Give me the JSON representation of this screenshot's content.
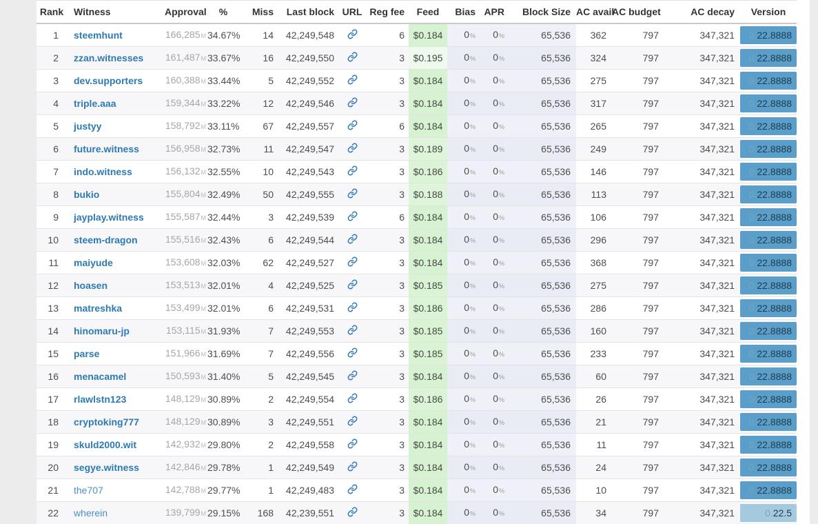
{
  "page": {
    "background": "#ececec"
  },
  "colors": {
    "link_blue": "#2d7ab0",
    "url_icon_blue": "#3579b8",
    "version_badge_blue": "#5b9ec9",
    "version_badge_old_blue": "#a5cadf",
    "feed_green": "#d7f2d1",
    "feed_pale_green": "#eefaec",
    "column_tint_lavender": "#f0f1f8",
    "row_stripe": "#f7f7fa"
  },
  "icons": {
    "url_column": "link-icon"
  },
  "table": {
    "percent_sign": "%",
    "columns": [
      {
        "key": "rank",
        "label": "Rank"
      },
      {
        "key": "witness",
        "label": "Witness"
      },
      {
        "key": "approval",
        "label": "Approval"
      },
      {
        "key": "pct",
        "label": "%"
      },
      {
        "key": "miss",
        "label": "Miss"
      },
      {
        "key": "last_block",
        "label": "Last block"
      },
      {
        "key": "url",
        "label": "URL"
      },
      {
        "key": "reg_fee",
        "label": "Reg fee"
      },
      {
        "key": "feed",
        "label": "Feed"
      },
      {
        "key": "bias",
        "label": "Bias"
      },
      {
        "key": "apr",
        "label": "APR"
      },
      {
        "key": "block_size",
        "label": "Block Size"
      },
      {
        "key": "ac_avail",
        "label": "AC avail"
      },
      {
        "key": "ac_budget",
        "label": "AC budget"
      },
      {
        "key": "ac_decay",
        "label": "AC decay"
      },
      {
        "key": "version",
        "label": "Version"
      }
    ],
    "rows": [
      {
        "rank": "1",
        "witness": "steemhunt",
        "bold": true,
        "approval": "166,285",
        "approval_suffix": "M",
        "pct": "34.67%",
        "miss": "14",
        "last_block": "42,249,548",
        "reg_fee": "6",
        "feed": "$0.184",
        "feed_bg": "#d7f2d1",
        "bias": "0",
        "apr": "0",
        "block_size": "65,536",
        "ac_avail": "362",
        "ac_budget": "797",
        "ac_decay": "347,321",
        "version_prefix": "0.",
        "version_main": "22.8888",
        "version_bg": "#5b9ec9"
      },
      {
        "rank": "2",
        "witness": "zzan.witnesses",
        "bold": true,
        "approval": "161,487",
        "approval_suffix": "M",
        "pct": "33.67%",
        "miss": "16",
        "last_block": "42,249,550",
        "reg_fee": "3",
        "feed": "$0.195",
        "feed_bg": "#eefaec",
        "bias": "0",
        "apr": "0",
        "block_size": "65,536",
        "ac_avail": "324",
        "ac_budget": "797",
        "ac_decay": "347,321",
        "version_prefix": "0.",
        "version_main": "22.8888",
        "version_bg": "#5b9ec9"
      },
      {
        "rank": "3",
        "witness": "dev.supporters",
        "bold": true,
        "approval": "160,388",
        "approval_suffix": "M",
        "pct": "33.44%",
        "miss": "5",
        "last_block": "42,249,552",
        "reg_fee": "3",
        "feed": "$0.184",
        "feed_bg": "#d7f2d1",
        "bias": "0",
        "apr": "0",
        "block_size": "65,536",
        "ac_avail": "275",
        "ac_budget": "797",
        "ac_decay": "347,321",
        "version_prefix": "0.",
        "version_main": "22.8888",
        "version_bg": "#5b9ec9"
      },
      {
        "rank": "4",
        "witness": "triple.aaa",
        "bold": true,
        "approval": "159,344",
        "approval_suffix": "M",
        "pct": "33.22%",
        "miss": "12",
        "last_block": "42,249,546",
        "reg_fee": "3",
        "feed": "$0.184",
        "feed_bg": "#d7f2d1",
        "bias": "0",
        "apr": "0",
        "block_size": "65,536",
        "ac_avail": "317",
        "ac_budget": "797",
        "ac_decay": "347,321",
        "version_prefix": "0.",
        "version_main": "22.8888",
        "version_bg": "#5b9ec9"
      },
      {
        "rank": "5",
        "witness": "justyy",
        "bold": true,
        "approval": "158,792",
        "approval_suffix": "M",
        "pct": "33.11%",
        "miss": "67",
        "last_block": "42,249,557",
        "reg_fee": "6",
        "feed": "$0.184",
        "feed_bg": "#d7f2d1",
        "bias": "0",
        "apr": "0",
        "block_size": "65,536",
        "ac_avail": "265",
        "ac_budget": "797",
        "ac_decay": "347,321",
        "version_prefix": "0.",
        "version_main": "22.8888",
        "version_bg": "#5b9ec9"
      },
      {
        "rank": "6",
        "witness": "future.witness",
        "bold": true,
        "approval": "156,958",
        "approval_suffix": "M",
        "pct": "32.73%",
        "miss": "11",
        "last_block": "42,249,547",
        "reg_fee": "3",
        "feed": "$0.189",
        "feed_bg": "#def5d9",
        "bias": "0",
        "apr": "0",
        "block_size": "65,536",
        "ac_avail": "249",
        "ac_budget": "797",
        "ac_decay": "347,321",
        "version_prefix": "0.",
        "version_main": "22.8888",
        "version_bg": "#5b9ec9"
      },
      {
        "rank": "7",
        "witness": "indo.witness",
        "bold": true,
        "approval": "156,132",
        "approval_suffix": "M",
        "pct": "32.55%",
        "miss": "10",
        "last_block": "42,249,543",
        "reg_fee": "3",
        "feed": "$0.186",
        "feed_bg": "#dbf4d6",
        "bias": "0",
        "apr": "0",
        "block_size": "65,536",
        "ac_avail": "146",
        "ac_budget": "797",
        "ac_decay": "347,321",
        "version_prefix": "0.",
        "version_main": "22.8888",
        "version_bg": "#5b9ec9"
      },
      {
        "rank": "8",
        "witness": "bukio",
        "bold": true,
        "approval": "155,804",
        "approval_suffix": "M",
        "pct": "32.49%",
        "miss": "50",
        "last_block": "42,249,555",
        "reg_fee": "3",
        "feed": "$0.188",
        "feed_bg": "#def5d9",
        "bias": "0",
        "apr": "0",
        "block_size": "65,536",
        "ac_avail": "113",
        "ac_budget": "797",
        "ac_decay": "347,321",
        "version_prefix": "0.",
        "version_main": "22.8888",
        "version_bg": "#5b9ec9"
      },
      {
        "rank": "9",
        "witness": "jayplay.witness",
        "bold": true,
        "approval": "155,587",
        "approval_suffix": "M",
        "pct": "32.44%",
        "miss": "3",
        "last_block": "42,249,539",
        "reg_fee": "6",
        "feed": "$0.184",
        "feed_bg": "#d7f2d1",
        "bias": "0",
        "apr": "0",
        "block_size": "65,536",
        "ac_avail": "106",
        "ac_budget": "797",
        "ac_decay": "347,321",
        "version_prefix": "0.",
        "version_main": "22.8888",
        "version_bg": "#5b9ec9"
      },
      {
        "rank": "10",
        "witness": "steem-dragon",
        "bold": true,
        "approval": "155,516",
        "approval_suffix": "M",
        "pct": "32.43%",
        "miss": "6",
        "last_block": "42,249,544",
        "reg_fee": "3",
        "feed": "$0.184",
        "feed_bg": "#d7f2d1",
        "bias": "0",
        "apr": "0",
        "block_size": "65,536",
        "ac_avail": "296",
        "ac_budget": "797",
        "ac_decay": "347,321",
        "version_prefix": "0.",
        "version_main": "22.8888",
        "version_bg": "#5b9ec9"
      },
      {
        "rank": "11",
        "witness": "maiyude",
        "bold": true,
        "approval": "153,608",
        "approval_suffix": "M",
        "pct": "32.03%",
        "miss": "62",
        "last_block": "42,249,527",
        "reg_fee": "3",
        "feed": "$0.184",
        "feed_bg": "#d7f2d1",
        "bias": "0",
        "apr": "0",
        "block_size": "65,536",
        "ac_avail": "368",
        "ac_budget": "797",
        "ac_decay": "347,321",
        "version_prefix": "0.",
        "version_main": "22.8888",
        "version_bg": "#5b9ec9"
      },
      {
        "rank": "12",
        "witness": "hoasen",
        "bold": true,
        "approval": "153,513",
        "approval_suffix": "M",
        "pct": "32.01%",
        "miss": "4",
        "last_block": "42,249,525",
        "reg_fee": "3",
        "feed": "$0.185",
        "feed_bg": "#d9f3d3",
        "bias": "0",
        "apr": "0",
        "block_size": "65,536",
        "ac_avail": "275",
        "ac_budget": "797",
        "ac_decay": "347,321",
        "version_prefix": "0.",
        "version_main": "22.8888",
        "version_bg": "#5b9ec9"
      },
      {
        "rank": "13",
        "witness": "matreshka",
        "bold": true,
        "approval": "153,499",
        "approval_suffix": "M",
        "pct": "32.01%",
        "miss": "6",
        "last_block": "42,249,531",
        "reg_fee": "3",
        "feed": "$0.186",
        "feed_bg": "#dbf4d6",
        "bias": "0",
        "apr": "0",
        "block_size": "65,536",
        "ac_avail": "286",
        "ac_budget": "797",
        "ac_decay": "347,321",
        "version_prefix": "0.",
        "version_main": "22.8888",
        "version_bg": "#5b9ec9"
      },
      {
        "rank": "14",
        "witness": "hinomaru-jp",
        "bold": true,
        "approval": "153,115",
        "approval_suffix": "M",
        "pct": "31.93%",
        "miss": "7",
        "last_block": "42,249,553",
        "reg_fee": "3",
        "feed": "$0.185",
        "feed_bg": "#d9f3d3",
        "bias": "0",
        "apr": "0",
        "block_size": "65,536",
        "ac_avail": "160",
        "ac_budget": "797",
        "ac_decay": "347,321",
        "version_prefix": "0.",
        "version_main": "22.8888",
        "version_bg": "#5b9ec9"
      },
      {
        "rank": "15",
        "witness": "parse",
        "bold": true,
        "approval": "151,966",
        "approval_suffix": "M",
        "pct": "31.69%",
        "miss": "7",
        "last_block": "42,249,556",
        "reg_fee": "3",
        "feed": "$0.185",
        "feed_bg": "#d9f3d3",
        "bias": "0",
        "apr": "0",
        "block_size": "65,536",
        "ac_avail": "233",
        "ac_budget": "797",
        "ac_decay": "347,321",
        "version_prefix": "0.",
        "version_main": "22.8888",
        "version_bg": "#5b9ec9"
      },
      {
        "rank": "16",
        "witness": "menacamel",
        "bold": true,
        "approval": "150,593",
        "approval_suffix": "M",
        "pct": "31.40%",
        "miss": "5",
        "last_block": "42,249,545",
        "reg_fee": "3",
        "feed": "$0.184",
        "feed_bg": "#d7f2d1",
        "bias": "0",
        "apr": "0",
        "block_size": "65,536",
        "ac_avail": "60",
        "ac_budget": "797",
        "ac_decay": "347,321",
        "version_prefix": "0.",
        "version_main": "22.8888",
        "version_bg": "#5b9ec9"
      },
      {
        "rank": "17",
        "witness": "rlawlstn123",
        "bold": true,
        "approval": "148,129",
        "approval_suffix": "M",
        "pct": "30.89%",
        "miss": "2",
        "last_block": "42,249,554",
        "reg_fee": "3",
        "feed": "$0.186",
        "feed_bg": "#dbf4d6",
        "bias": "0",
        "apr": "0",
        "block_size": "65,536",
        "ac_avail": "26",
        "ac_budget": "797",
        "ac_decay": "347,321",
        "version_prefix": "0.",
        "version_main": "22.8888",
        "version_bg": "#5b9ec9"
      },
      {
        "rank": "18",
        "witness": "cryptoking777",
        "bold": true,
        "approval": "148,129",
        "approval_suffix": "M",
        "pct": "30.89%",
        "miss": "3",
        "last_block": "42,249,551",
        "reg_fee": "3",
        "feed": "$0.184",
        "feed_bg": "#d7f2d1",
        "bias": "0",
        "apr": "0",
        "block_size": "65,536",
        "ac_avail": "21",
        "ac_budget": "797",
        "ac_decay": "347,321",
        "version_prefix": "0.",
        "version_main": "22.8888",
        "version_bg": "#5b9ec9"
      },
      {
        "rank": "19",
        "witness": "skuld2000.wit",
        "bold": true,
        "approval": "142,932",
        "approval_suffix": "M",
        "pct": "29.80%",
        "miss": "2",
        "last_block": "42,249,558",
        "reg_fee": "3",
        "feed": "$0.184",
        "feed_bg": "#d7f2d1",
        "bias": "0",
        "apr": "0",
        "block_size": "65,536",
        "ac_avail": "11",
        "ac_budget": "797",
        "ac_decay": "347,321",
        "version_prefix": "0.",
        "version_main": "22.8888",
        "version_bg": "#5b9ec9"
      },
      {
        "rank": "20",
        "witness": "segye.witness",
        "bold": true,
        "approval": "142,846",
        "approval_suffix": "M",
        "pct": "29.78%",
        "miss": "1",
        "last_block": "42,249,549",
        "reg_fee": "3",
        "feed": "$0.184",
        "feed_bg": "#d7f2d1",
        "bias": "0",
        "apr": "0",
        "block_size": "65,536",
        "ac_avail": "24",
        "ac_budget": "797",
        "ac_decay": "347,321",
        "version_prefix": "0.",
        "version_main": "22.8888",
        "version_bg": "#5b9ec9"
      },
      {
        "rank": "21",
        "witness": "the707",
        "bold": false,
        "approval": "142,788",
        "approval_suffix": "M",
        "pct": "29.77%",
        "miss": "1",
        "last_block": "42,249,483",
        "reg_fee": "3",
        "feed": "$0.184",
        "feed_bg": "#d7f2d1",
        "bias": "0",
        "apr": "0",
        "block_size": "65,536",
        "ac_avail": "10",
        "ac_budget": "797",
        "ac_decay": "347,321",
        "version_prefix": "0.",
        "version_main": "22.8888",
        "version_bg": "#5b9ec9"
      },
      {
        "rank": "22",
        "witness": "wherein",
        "bold": false,
        "approval": "139,799",
        "approval_suffix": "M",
        "pct": "29.15%",
        "miss": "168",
        "last_block": "42,239,551",
        "reg_fee": "3",
        "feed": "$0.184",
        "feed_bg": "#d7f2d1",
        "bias": "0",
        "apr": "0",
        "block_size": "65,536",
        "ac_avail": "34",
        "ac_budget": "797",
        "ac_decay": "347,321",
        "version_prefix": "0.",
        "version_main": "22.5",
        "version_bg": "#a5cadf"
      }
    ]
  }
}
